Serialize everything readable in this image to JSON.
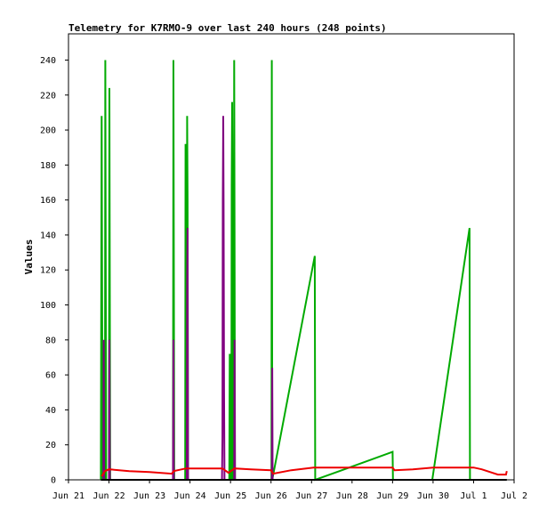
{
  "chart_data": {
    "type": "line",
    "title": "Telemetry for K7RMO-9 over last 240 hours (248 points)",
    "xlabel": "",
    "ylabel": "Values",
    "x_unit": "days since Jun 21 00:00",
    "xlim": [
      0,
      11
    ],
    "ylim": [
      0,
      255
    ],
    "grid": false,
    "legend": "none",
    "x_ticks": [
      {
        "v": 0,
        "label": "Jun 21"
      },
      {
        "v": 1,
        "label": "Jun 22"
      },
      {
        "v": 2,
        "label": "Jun 23"
      },
      {
        "v": 3,
        "label": "Jun 24"
      },
      {
        "v": 4,
        "label": "Jun 25"
      },
      {
        "v": 5,
        "label": "Jun 26"
      },
      {
        "v": 6,
        "label": "Jun 27"
      },
      {
        "v": 7,
        "label": "Jun 28"
      },
      {
        "v": 8,
        "label": "Jun 29"
      },
      {
        "v": 9,
        "label": "Jun 30"
      },
      {
        "v": 10,
        "label": "Jul 1"
      },
      {
        "v": 11,
        "label": "Jul 2"
      }
    ],
    "y_ticks": [
      0,
      20,
      40,
      60,
      80,
      100,
      120,
      140,
      160,
      180,
      200,
      220,
      240
    ],
    "series": [
      {
        "color": "#00aa00",
        "points": [
          [
            0.8,
            0
          ],
          [
            0.82,
            208
          ],
          [
            0.84,
            0
          ],
          [
            0.9,
            0
          ],
          [
            0.91,
            240
          ],
          [
            0.93,
            0
          ],
          [
            1.0,
            0
          ],
          [
            1.01,
            224
          ],
          [
            1.03,
            0
          ],
          [
            2.58,
            0
          ],
          [
            2.59,
            240
          ],
          [
            2.61,
            0
          ],
          [
            2.88,
            0
          ],
          [
            2.89,
            192
          ],
          [
            2.9,
            0
          ],
          [
            2.92,
            0
          ],
          [
            2.93,
            208
          ],
          [
            2.94,
            160
          ],
          [
            2.95,
            0
          ],
          [
            3.97,
            0
          ],
          [
            3.98,
            72
          ],
          [
            3.99,
            0
          ],
          [
            4.02,
            0
          ],
          [
            4.03,
            168
          ],
          [
            4.04,
            216
          ],
          [
            4.05,
            120
          ],
          [
            4.06,
            0
          ],
          [
            4.08,
            0
          ],
          [
            4.09,
            240
          ],
          [
            4.1,
            144
          ],
          [
            4.11,
            0
          ],
          [
            5.01,
            0
          ],
          [
            5.02,
            240
          ],
          [
            5.03,
            0
          ],
          [
            6.08,
            128
          ],
          [
            6.09,
            0
          ],
          [
            8.0,
            16
          ],
          [
            8.01,
            0
          ],
          [
            8.98,
            0
          ],
          [
            9.9,
            144
          ],
          [
            9.91,
            0
          ]
        ]
      },
      {
        "color": "#800080",
        "points": [
          [
            0.86,
            0
          ],
          [
            0.87,
            80
          ],
          [
            0.88,
            0
          ],
          [
            1.0,
            0
          ],
          [
            1.01,
            80
          ],
          [
            1.02,
            0
          ],
          [
            2.58,
            0
          ],
          [
            2.59,
            80
          ],
          [
            2.6,
            0
          ],
          [
            2.92,
            0
          ],
          [
            2.93,
            112
          ],
          [
            2.94,
            144
          ],
          [
            2.95,
            0
          ],
          [
            3.79,
            0
          ],
          [
            3.8,
            24
          ],
          [
            3.81,
            160
          ],
          [
            3.82,
            208
          ],
          [
            3.83,
            156
          ],
          [
            3.84,
            52
          ],
          [
            3.85,
            0
          ],
          [
            4.09,
            0
          ],
          [
            4.1,
            80
          ],
          [
            4.11,
            0
          ],
          [
            5.02,
            0
          ],
          [
            5.03,
            64
          ],
          [
            5.04,
            0
          ]
        ]
      },
      {
        "color": "#ee0000",
        "points": [
          [
            0.82,
            2
          ],
          [
            0.9,
            5
          ],
          [
            1.0,
            6
          ],
          [
            1.5,
            5
          ],
          [
            2.0,
            4.5
          ],
          [
            2.55,
            3.5
          ],
          [
            2.6,
            5
          ],
          [
            2.9,
            6.5
          ],
          [
            3.8,
            6.5
          ],
          [
            3.95,
            4
          ],
          [
            4.1,
            6.5
          ],
          [
            4.5,
            6
          ],
          [
            5.0,
            5.5
          ],
          [
            5.05,
            3.5
          ],
          [
            5.5,
            5.5
          ],
          [
            6.05,
            7
          ],
          [
            7.0,
            7
          ],
          [
            8.0,
            7
          ],
          [
            8.05,
            5.5
          ],
          [
            8.5,
            6
          ],
          [
            9.0,
            7
          ],
          [
            10.0,
            7
          ],
          [
            10.2,
            6
          ],
          [
            10.6,
            3
          ],
          [
            10.8,
            3
          ],
          [
            10.82,
            5
          ]
        ]
      },
      {
        "color": "#000000",
        "points": [
          [
            0.8,
            0
          ],
          [
            10.82,
            0
          ]
        ]
      }
    ]
  }
}
